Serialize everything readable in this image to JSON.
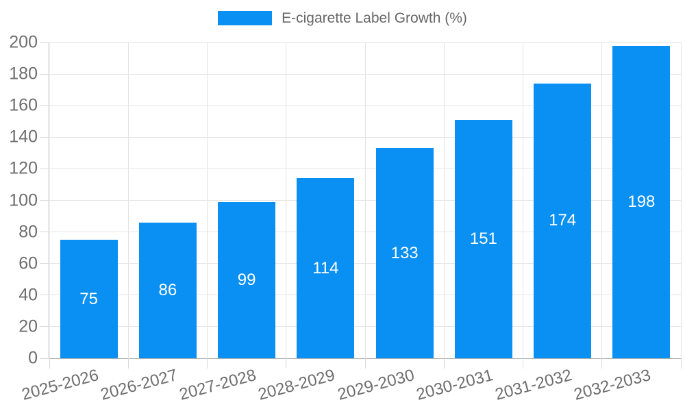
{
  "chart_data": {
    "type": "bar",
    "title": "E-cigarette Label Growth (%)",
    "legend": [
      {
        "label": "E-cigarette Label Growth (%)"
      }
    ],
    "legend_position": "top-center",
    "categories": [
      "2025-2026",
      "2026-2027",
      "2027-2028",
      "2028-2029",
      "2029-2030",
      "2030-2031",
      "2031-2032",
      "2032-2033"
    ],
    "values": [
      75,
      86,
      99,
      114,
      133,
      151,
      174,
      198
    ],
    "yticks": [
      0,
      20,
      40,
      60,
      80,
      100,
      120,
      140,
      160,
      180,
      200
    ],
    "ylim": [
      0,
      200
    ],
    "xlabel": "",
    "ylabel": "",
    "grid": true,
    "bar_value_labels_inside": true,
    "x_label_rotation_deg": -15,
    "colors": {
      "bar": "#0a90f2",
      "bar_label": "#ffffff",
      "axis": "#b0b0b0",
      "grid": "#e4e4e4",
      "tick": "#d9d9d9",
      "text": "#6e6e6e",
      "legend_text": "#666666",
      "background": "#ffffff"
    }
  }
}
